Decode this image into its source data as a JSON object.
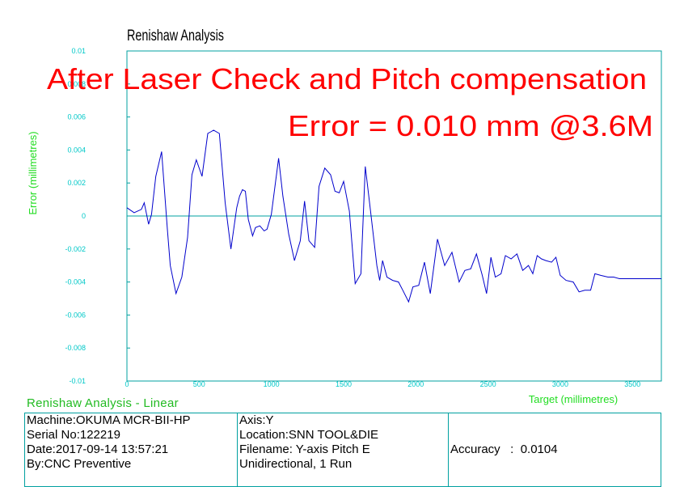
{
  "chart_data": {
    "type": "line",
    "title": "Renishaw Analysis",
    "xlabel": "Target (millimetres)",
    "ylabel": "Error (millimetres)",
    "xlim": [
      0,
      3700
    ],
    "ylim": [
      -0.01,
      0.01
    ],
    "x_ticks": [
      "0",
      "500",
      "1000",
      "1500",
      "2000",
      "2500",
      "3000",
      "3500"
    ],
    "y_ticks": [
      "0.01",
      "0.008",
      "0.006",
      "0.004",
      "0.002",
      "0",
      "-0.002",
      "-0.004",
      "-0.006",
      "-0.008",
      "-0.01"
    ],
    "grid": false,
    "line_color": "#0000cc",
    "frame_color": "#00a0a0",
    "series": [
      {
        "x": [
          0,
          50,
          100,
          120,
          150,
          170,
          200,
          240,
          280,
          300,
          340,
          380,
          420,
          450,
          480,
          520,
          560,
          580,
          600,
          640,
          680,
          720,
          760,
          780,
          800,
          820,
          840,
          870,
          890,
          920,
          950,
          970,
          1000,
          1050,
          1080,
          1120,
          1160,
          1200,
          1230,
          1260,
          1300,
          1330,
          1370,
          1410,
          1440,
          1470,
          1500,
          1540,
          1580,
          1620,
          1650,
          1680,
          1730,
          1750,
          1770,
          1800,
          1840,
          1880,
          1910,
          1950,
          1980,
          2020,
          2060,
          2100,
          2150,
          2200,
          2250,
          2300,
          2340,
          2380,
          2420,
          2460,
          2490,
          2520,
          2550,
          2590,
          2620,
          2660,
          2700,
          2740,
          2780,
          2810,
          2840,
          2870,
          2900,
          2940,
          2970,
          3000,
          3040,
          3090,
          3130,
          3170,
          3210,
          3240,
          3280,
          3330,
          3370,
          3410,
          3450,
          3490,
          3540,
          3580,
          3620,
          3670,
          3700
        ],
        "y": [
          0.0005,
          0.0002,
          0.0004,
          0.0008,
          -0.0005,
          0.0001,
          0.0024,
          0.0039,
          -0.0008,
          -0.003,
          -0.0047,
          -0.0037,
          -0.0013,
          0.0025,
          0.0034,
          0.0024,
          0.005,
          0.0051,
          0.0052,
          0.005,
          0.0008,
          -0.002,
          0.0005,
          0.0012,
          0.0016,
          0.0015,
          -0.0002,
          -0.0012,
          -0.0007,
          -0.0006,
          -0.0009,
          -0.0008,
          0.0001,
          0.0035,
          0.0012,
          -0.0011,
          -0.0027,
          -0.0015,
          0.0009,
          -0.0015,
          -0.0019,
          0.0018,
          0.0029,
          0.0025,
          0.0015,
          0.0014,
          0.0021,
          0.0003,
          -0.0041,
          -0.0035,
          0.003,
          0.0008,
          -0.003,
          -0.0039,
          -0.0027,
          -0.0037,
          -0.0039,
          -0.004,
          -0.0045,
          -0.0052,
          -0.0043,
          -0.0042,
          -0.0028,
          -0.0047,
          -0.0014,
          -0.003,
          -0.0022,
          -0.004,
          -0.0033,
          -0.0032,
          -0.0023,
          -0.0036,
          -0.0047,
          -0.0025,
          -0.0037,
          -0.0035,
          -0.0024,
          -0.0026,
          -0.0023,
          -0.0033,
          -0.003,
          -0.0035,
          -0.0024,
          -0.0026,
          -0.0027,
          -0.0028,
          -0.0025,
          -0.0036,
          -0.0039,
          -0.004,
          -0.0046,
          -0.0045,
          -0.0045,
          -0.0035,
          -0.0036,
          -0.0037,
          -0.0037,
          -0.0038,
          -0.0038,
          -0.0038,
          -0.0038,
          -0.0038,
          -0.0038,
          -0.0038,
          -0.0038
        ]
      }
    ]
  },
  "overlay": {
    "line1": "After Laser Check and Pitch compensation",
    "line2": "Error = 0.010 mm @3.6M"
  },
  "summary": {
    "title": "Renishaw Analysis - Linear",
    "machine": "Machine:OKUMA MCR-BII-HP",
    "serial": "Serial No:122219",
    "date": "Date:2017-09-14 13:57:21",
    "by": "By:CNC Preventive",
    "axis": "Axis:Y",
    "location": "Location:SNN TOOL&DIE",
    "filename": "Filename: Y-axis Pitch E",
    "mode": "Unidirectional, 1 Run",
    "accuracy": "Accuracy   :  0.0104"
  }
}
